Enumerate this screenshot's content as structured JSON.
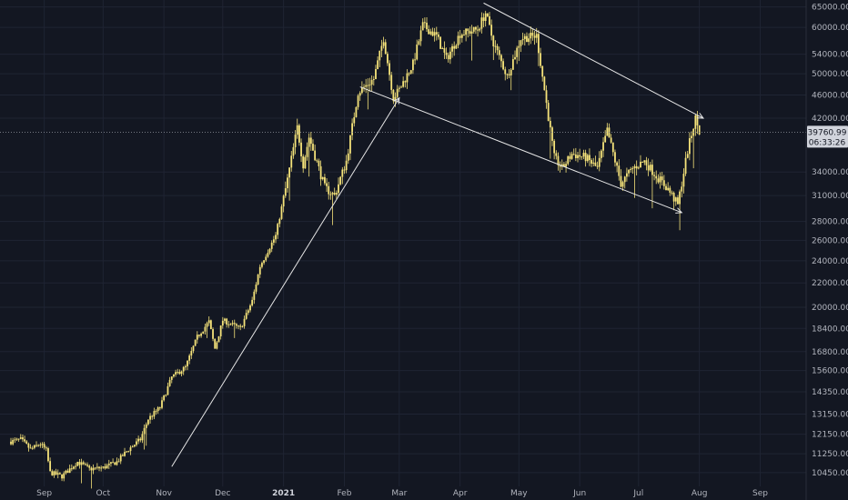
{
  "chart_data": {
    "type": "candlestick",
    "y_scale": "log",
    "ylim": [
      9900,
      66800
    ],
    "y_ticks": [
      "65000.00",
      "60000.00",
      "54000.00",
      "50000.00",
      "46000.00",
      "42000.00",
      "34000.00",
      "31000.00",
      "28000.00",
      "26000.00",
      "24000.00",
      "22000.00",
      "20000.00",
      "18400.00",
      "16800.00",
      "15600.00",
      "14350.00",
      "13150.00",
      "12150.00",
      "11250.00",
      "10450.00"
    ],
    "x_ticks": [
      "Sep",
      "Oct",
      "Nov",
      "Dec",
      "2021",
      "Feb",
      "Mar",
      "Apr",
      "May",
      "Jun",
      "Jul",
      "Aug",
      "Sep"
    ],
    "x_range": [
      "2020-08-15",
      "2021-09-30"
    ],
    "last_price": "39760.99",
    "countdown": "06:33:26",
    "grid": true,
    "colors": {
      "background": "#131722",
      "grid": "#1f2433",
      "candle": "#f5e37a",
      "trendline": "#e6e6e6",
      "price_box": "#d1d4dc",
      "axis_text": "#b2b5be"
    },
    "close_path": [
      [
        "2020-08-15",
        11800
      ],
      [
        "2020-08-20",
        11900
      ],
      [
        "2020-08-25",
        11450
      ],
      [
        "2020-08-30",
        11700
      ],
      [
        "2020-09-02",
        11400
      ],
      [
        "2020-09-04",
        10450
      ],
      [
        "2020-09-10",
        10300
      ],
      [
        "2020-09-18",
        10900
      ],
      [
        "2020-09-24",
        10600
      ],
      [
        "2020-10-01",
        10650
      ],
      [
        "2020-10-08",
        10900
      ],
      [
        "2020-10-14",
        11450
      ],
      [
        "2020-10-20",
        11900
      ],
      [
        "2020-10-24",
        12900
      ],
      [
        "2020-10-30",
        13500
      ],
      [
        "2020-11-05",
        15200
      ],
      [
        "2020-11-12",
        15800
      ],
      [
        "2020-11-18",
        17800
      ],
      [
        "2020-11-24",
        18900
      ],
      [
        "2020-11-27",
        17000
      ],
      [
        "2020-12-01",
        19000
      ],
      [
        "2020-12-10",
        18400
      ],
      [
        "2020-12-16",
        20500
      ],
      [
        "2020-12-20",
        23500
      ],
      [
        "2020-12-28",
        26500
      ],
      [
        "2021-01-03",
        33000
      ],
      [
        "2021-01-08",
        40500
      ],
      [
        "2021-01-11",
        35000
      ],
      [
        "2021-01-14",
        39000
      ],
      [
        "2021-01-22",
        32000
      ],
      [
        "2021-01-27",
        31000
      ],
      [
        "2021-02-02",
        35500
      ],
      [
        "2021-02-08",
        46500
      ],
      [
        "2021-02-16",
        49000
      ],
      [
        "2021-02-21",
        57500
      ],
      [
        "2021-02-26",
        45500
      ],
      [
        "2021-03-01",
        47000
      ],
      [
        "2021-03-08",
        52000
      ],
      [
        "2021-03-13",
        60500
      ],
      [
        "2021-03-20",
        58000
      ],
      [
        "2021-03-25",
        53000
      ],
      [
        "2021-04-01",
        58500
      ],
      [
        "2021-04-10",
        59500
      ],
      [
        "2021-04-14",
        63500
      ],
      [
        "2021-04-18",
        56500
      ],
      [
        "2021-04-25",
        49500
      ],
      [
        "2021-05-02",
        57500
      ],
      [
        "2021-05-10",
        58000
      ],
      [
        "2021-05-13",
        49500
      ],
      [
        "2021-05-19",
        36000
      ],
      [
        "2021-05-23",
        34500
      ],
      [
        "2021-05-28",
        36500
      ],
      [
        "2021-06-04",
        36000
      ],
      [
        "2021-06-10",
        34500
      ],
      [
        "2021-06-15",
        40000
      ],
      [
        "2021-06-22",
        32500
      ],
      [
        "2021-06-28",
        34500
      ],
      [
        "2021-07-04",
        35500
      ],
      [
        "2021-07-10",
        33500
      ],
      [
        "2021-07-16",
        31800
      ],
      [
        "2021-07-21",
        29900
      ],
      [
        "2021-07-26",
        37000
      ],
      [
        "2021-07-30",
        42000
      ],
      [
        "2021-08-01",
        39760.99
      ]
    ],
    "trendlines": [
      {
        "from": [
          "2020-11-05",
          10700
        ],
        "to": [
          "2021-03-01",
          45500
        ]
      },
      {
        "from": [
          "2021-02-09",
          47500
        ],
        "to": [
          "2021-07-23",
          29000
        ]
      },
      {
        "from": [
          "2021-04-13",
          66000
        ],
        "to": [
          "2021-08-03",
          42000
        ]
      }
    ]
  }
}
